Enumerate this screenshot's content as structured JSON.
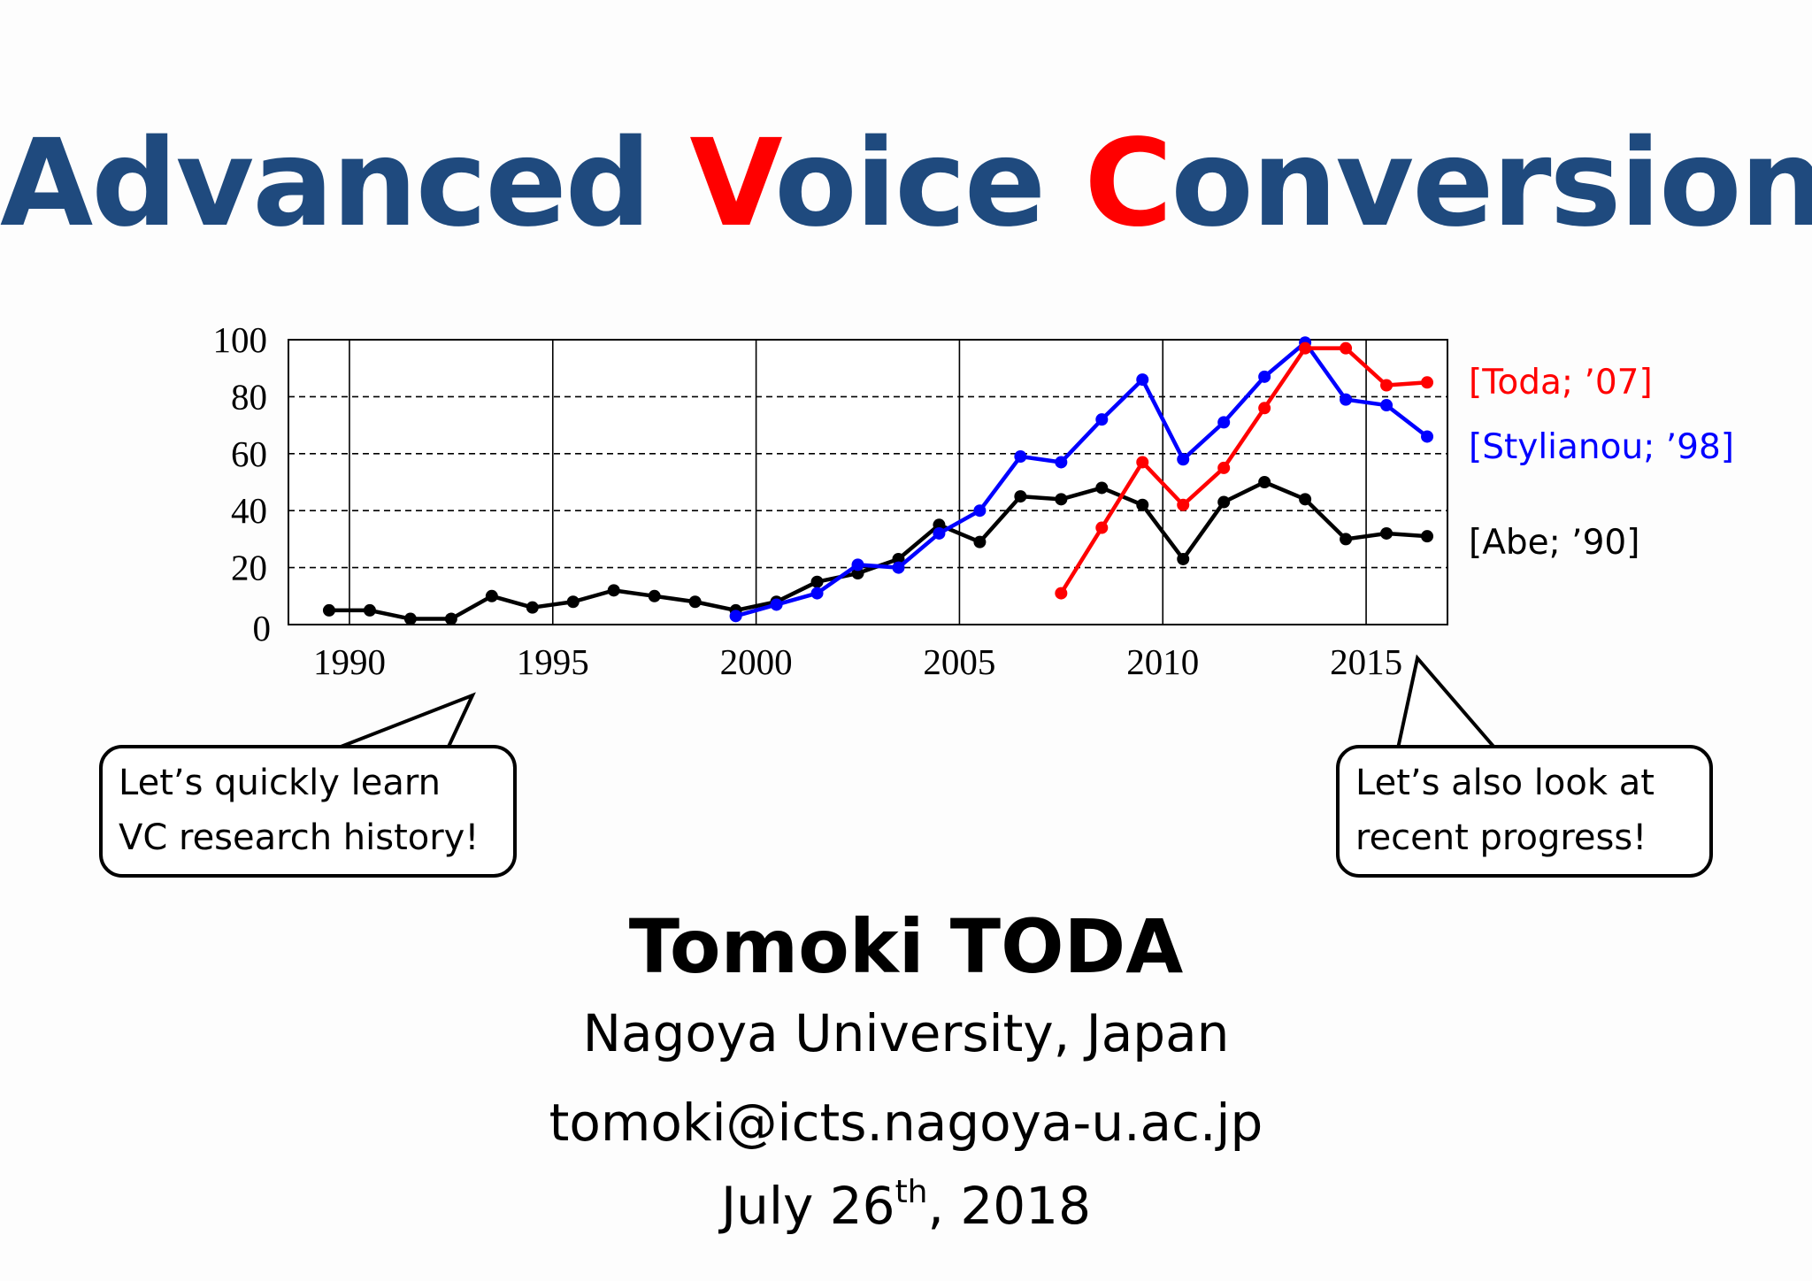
{
  "title": {
    "parts": [
      {
        "text": "Advanced ",
        "highlight": false
      },
      {
        "text": "V",
        "highlight": true
      },
      {
        "text": "oice ",
        "highlight": false
      },
      {
        "text": "C",
        "highlight": true
      },
      {
        "text": "onversion",
        "highlight": false
      }
    ],
    "color": "#1f4a7e",
    "highlight_color": "#ff0000"
  },
  "chart_data": {
    "type": "line",
    "xlim": [
      1989,
      2017.5
    ],
    "ylim": [
      0,
      100
    ],
    "x_ticks": [
      1990,
      1995,
      2000,
      2005,
      2010,
      2015
    ],
    "y_ticks": [
      0,
      20,
      40,
      60,
      80,
      100
    ],
    "grid": {
      "x": "solid",
      "y": "dashed"
    },
    "legend_position": "right",
    "series": [
      {
        "name": "[Toda; ’07]",
        "color": "#ff0000",
        "x": [
          2008,
          2009,
          2010,
          2011,
          2012,
          2013,
          2014,
          2015,
          2016,
          2017
        ],
        "y": [
          11,
          34,
          57,
          42,
          55,
          76,
          97,
          97,
          84,
          85
        ]
      },
      {
        "name": "[Stylianou; ’98]",
        "color": "#0000ff",
        "x": [
          2000,
          2001,
          2002,
          2003,
          2004,
          2005,
          2006,
          2007,
          2008,
          2009,
          2010,
          2011,
          2012,
          2013,
          2014,
          2015,
          2016,
          2017
        ],
        "y": [
          3,
          7,
          11,
          21,
          20,
          32,
          40,
          59,
          57,
          72,
          86,
          58,
          71,
          87,
          99,
          79,
          77,
          66
        ]
      },
      {
        "name": "[Abe; ’90]",
        "color": "#000000",
        "x": [
          1990,
          1991,
          1992,
          1993,
          1994,
          1995,
          1996,
          1997,
          1998,
          1999,
          2000,
          2001,
          2002,
          2003,
          2004,
          2005,
          2006,
          2007,
          2008,
          2009,
          2010,
          2011,
          2012,
          2013,
          2014,
          2015,
          2016,
          2017
        ],
        "y": [
          5,
          5,
          2,
          2,
          10,
          6,
          8,
          12,
          10,
          8,
          5,
          8,
          15,
          18,
          23,
          35,
          29,
          45,
          44,
          48,
          42,
          23,
          43,
          50,
          44,
          30,
          32,
          31
        ]
      }
    ]
  },
  "callouts": {
    "left": {
      "line1": "Let’s quickly learn",
      "line2": "VC research history!"
    },
    "right": {
      "line1": "Let’s also look at",
      "line2": "recent progress!"
    }
  },
  "author": {
    "name": "Tomoki TODA",
    "affiliation": "Nagoya University, Japan",
    "email": "tomoki@icts.nagoya-u.ac.jp"
  },
  "date": {
    "prefix": "July 26",
    "suffix_sup": "th",
    "rest": ", 2018"
  }
}
